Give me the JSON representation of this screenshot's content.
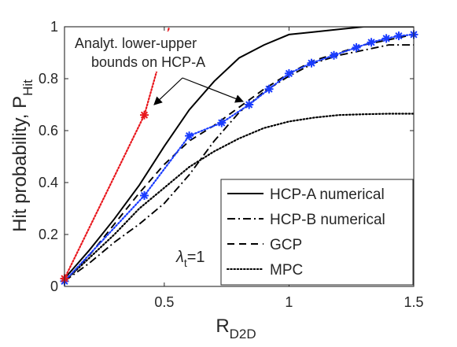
{
  "chart_data": {
    "type": "line",
    "xlabel": "R",
    "xlabel_sub": "D2D",
    "ylabel": "Hit probability, P",
    "ylabel_sub": "Hit",
    "xlim": [
      0.1,
      1.5
    ],
    "ylim": [
      0,
      1
    ],
    "xticks": [
      0.5,
      1,
      1.5
    ],
    "xtick_labels": [
      "0.5",
      "1",
      "1.5"
    ],
    "yticks": [
      0,
      0.2,
      0.4,
      0.6,
      0.8,
      1
    ],
    "ytick_labels": [
      "0",
      "0.2",
      "0.4",
      "0.6",
      "0.8",
      "1"
    ],
    "grid": false,
    "legend_position": "lower-right",
    "series": [
      {
        "name": "HCP-A numerical",
        "style": "solid",
        "color": "#000000",
        "x": [
          0.1,
          0.2,
          0.3,
          0.4,
          0.5,
          0.6,
          0.7,
          0.8,
          0.9,
          1.0,
          1.1,
          1.2,
          1.3,
          1.4,
          1.5
        ],
        "y": [
          0.03,
          0.14,
          0.26,
          0.39,
          0.54,
          0.68,
          0.79,
          0.88,
          0.93,
          0.97,
          0.98,
          0.99,
          1.0,
          1.0,
          1.0
        ]
      },
      {
        "name": "HCP-B numerical",
        "style": "dashdot",
        "color": "#000000",
        "x": [
          0.1,
          0.2,
          0.3,
          0.4,
          0.5,
          0.6,
          0.7,
          0.8,
          0.9,
          1.0,
          1.1,
          1.2,
          1.3,
          1.4,
          1.5
        ],
        "y": [
          0.02,
          0.09,
          0.17,
          0.24,
          0.32,
          0.43,
          0.56,
          0.67,
          0.75,
          0.81,
          0.86,
          0.89,
          0.91,
          0.93,
          0.93
        ]
      },
      {
        "name": "GCP",
        "style": "dashed",
        "color": "#000000",
        "x": [
          0.1,
          0.2,
          0.3,
          0.4,
          0.5,
          0.6,
          0.7,
          0.8,
          0.9,
          1.0,
          1.1,
          1.2,
          1.3,
          1.4,
          1.5
        ],
        "y": [
          0.02,
          0.12,
          0.24,
          0.36,
          0.47,
          0.56,
          0.62,
          0.69,
          0.76,
          0.82,
          0.87,
          0.9,
          0.93,
          0.95,
          0.97
        ]
      },
      {
        "name": "MPC",
        "style": "dotted",
        "color": "#000000",
        "x": [
          0.1,
          0.2,
          0.3,
          0.4,
          0.5,
          0.6,
          0.7,
          0.8,
          0.9,
          1.0,
          1.1,
          1.2,
          1.3,
          1.4,
          1.5
        ],
        "y": [
          0.02,
          0.11,
          0.2,
          0.3,
          0.38,
          0.46,
          0.52,
          0.57,
          0.61,
          0.635,
          0.65,
          0.66,
          0.663,
          0.665,
          0.665
        ]
      },
      {
        "name": "",
        "style": "dotted-markers",
        "color": "#1a3cff",
        "marker": "asterisk",
        "x": [
          0.1,
          0.42,
          0.6,
          0.73,
          0.84,
          0.92,
          1.0,
          1.09,
          1.18,
          1.27,
          1.33,
          1.39,
          1.44,
          1.5
        ],
        "y": [
          0.02,
          0.35,
          0.58,
          0.63,
          0.7,
          0.76,
          0.82,
          0.86,
          0.89,
          0.92,
          0.94,
          0.955,
          0.965,
          0.97
        ]
      },
      {
        "name": "",
        "style": "dotted-markers",
        "color": "#e8161c",
        "marker": "asterisk",
        "x": [
          0.1,
          0.42,
          0.52
        ],
        "y": [
          0.03,
          0.66,
          1.0
        ],
        "marker_x": [
          0.1,
          0.42
        ],
        "marker_y": [
          0.03,
          0.66
        ]
      }
    ],
    "annotations": {
      "bounds_text_line1": "Analyt. lower-upper",
      "bounds_text_line2": "bounds on HCP-A",
      "lambda_label": "λ",
      "lambda_sub": "t",
      "lambda_value": "=1"
    }
  }
}
